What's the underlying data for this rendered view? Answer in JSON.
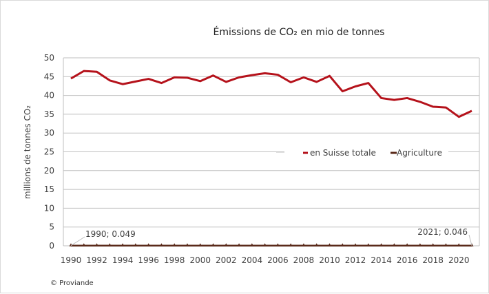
{
  "chart_data": {
    "type": "line",
    "title": "Émissions de CO₂ en mio de tonnes",
    "ylabel": "millions de tonnes CO₂",
    "xlabel": "",
    "ylim": [
      0,
      50
    ],
    "yticks": [
      0,
      5,
      10,
      15,
      20,
      25,
      30,
      35,
      40,
      45,
      50
    ],
    "xlim": [
      1990,
      2021
    ],
    "xticks": [
      1990,
      1992,
      1994,
      1996,
      1998,
      2000,
      2002,
      2004,
      2006,
      2008,
      2010,
      2012,
      2014,
      2016,
      2018,
      2020
    ],
    "grid": "horizontal",
    "legend_position": "center-right",
    "x": [
      1990,
      1991,
      1992,
      1993,
      1994,
      1995,
      1996,
      1997,
      1998,
      1999,
      2000,
      2001,
      2002,
      2003,
      2004,
      2005,
      2006,
      2007,
      2008,
      2009,
      2010,
      2011,
      2012,
      2013,
      2014,
      2015,
      2016,
      2017,
      2018,
      2019,
      2020,
      2021
    ],
    "series": [
      {
        "name": "en Suisse totale",
        "color": "#b5121b",
        "values": [
          44.5,
          46.5,
          46.3,
          44.0,
          43.0,
          43.7,
          44.4,
          43.3,
          44.8,
          44.7,
          43.8,
          45.3,
          43.6,
          44.8,
          45.4,
          45.9,
          45.5,
          43.5,
          44.8,
          43.6,
          45.2,
          41.1,
          42.4,
          43.3,
          39.3,
          38.8,
          39.3,
          38.3,
          37.0,
          36.8,
          34.3,
          35.9
        ]
      },
      {
        "name": "Agriculture",
        "color": "#5a2a1a",
        "values": [
          0.049,
          0.049,
          0.049,
          0.049,
          0.048,
          0.048,
          0.048,
          0.048,
          0.048,
          0.048,
          0.048,
          0.048,
          0.048,
          0.048,
          0.047,
          0.047,
          0.047,
          0.047,
          0.047,
          0.047,
          0.047,
          0.047,
          0.047,
          0.047,
          0.046,
          0.046,
          0.046,
          0.046,
          0.046,
          0.046,
          0.046,
          0.046
        ]
      }
    ],
    "annotations": [
      "1990;  0.049",
      "2021;  0.046"
    ]
  },
  "footer": "© Proviande"
}
